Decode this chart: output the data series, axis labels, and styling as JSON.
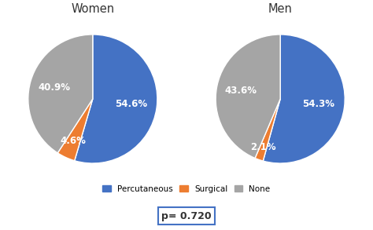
{
  "women": {
    "title": "Women",
    "values": [
      54.6,
      4.6,
      40.9
    ],
    "labels": [
      "54.6%",
      "4.6%",
      "40.9%"
    ],
    "colors": [
      "#4472C4",
      "#ED7D31",
      "#A5A5A5"
    ],
    "startangle": 90,
    "label_radii": [
      0.6,
      0.72,
      0.62
    ]
  },
  "men": {
    "title": "Men",
    "values": [
      54.3,
      2.1,
      43.6
    ],
    "labels": [
      "54.3%",
      "2.1%",
      "43.6%"
    ],
    "colors": [
      "#4472C4",
      "#ED7D31",
      "#A5A5A5"
    ],
    "startangle": 90,
    "label_radii": [
      0.6,
      0.8,
      0.62
    ]
  },
  "legend": {
    "labels": [
      "Percutaneous",
      "Surgical",
      "None"
    ],
    "colors": [
      "#4472C4",
      "#ED7D31",
      "#A5A5A5"
    ]
  },
  "pvalue": "p= 0.720",
  "background_color": "#FFFFFF",
  "label_fontsize": 8.5,
  "title_fontsize": 10.5
}
